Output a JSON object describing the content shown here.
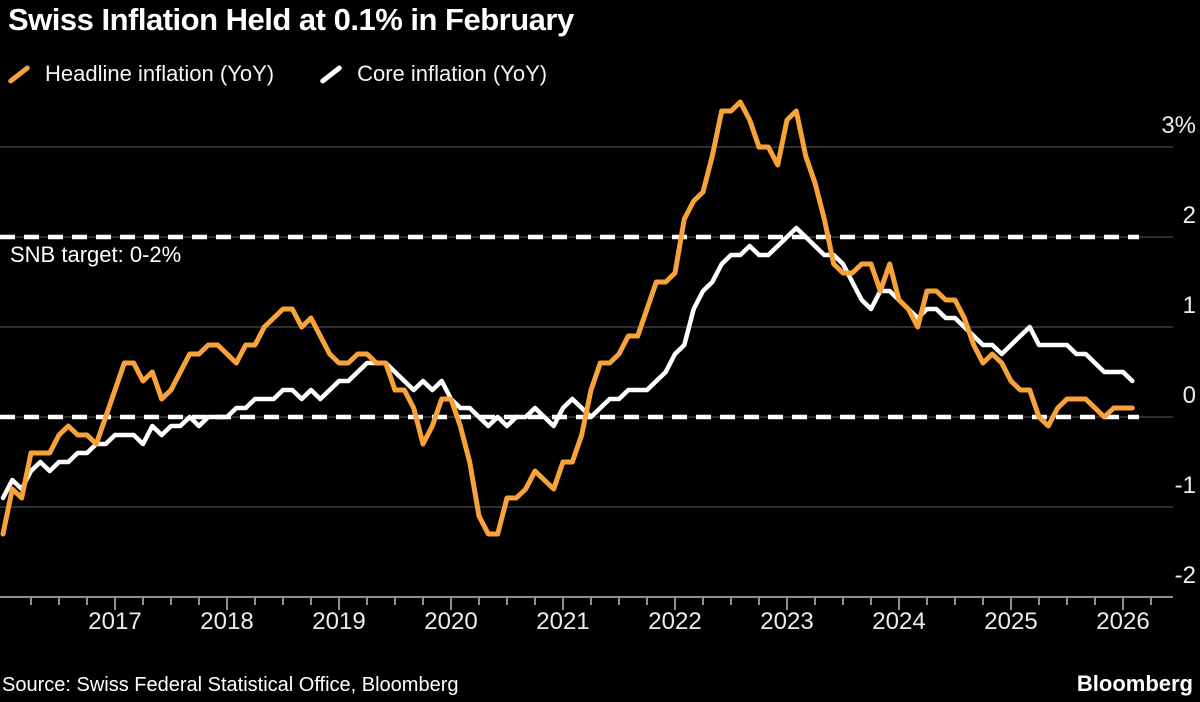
{
  "title": "Swiss Inflation Held at 0.1% in February",
  "annotation": "SNB target: 0-2%",
  "source": "Source: Swiss Federal Statistical Office, Bloomberg",
  "logo": "Bloomberg",
  "colors": {
    "background": "#000000",
    "headline_orange": "#F7A339",
    "core_white": "#FFFFFF",
    "gridline": "#3d3d3d",
    "axis": "#8f8f8f",
    "label_text": "#ececec"
  },
  "legend": [
    {
      "label": "Headline inflation (YoY)",
      "color": "#F7A339"
    },
    {
      "label": "Core inflation (YoY)",
      "color": "#FFFFFF"
    }
  ],
  "chart_data": {
    "type": "line",
    "title": "Swiss Inflation Held at 0.1% in February",
    "xlabel": "",
    "ylabel": "",
    "x_start": "2016-01",
    "x_end": "2026-02",
    "frequency": "monthly",
    "ylim": [
      -2,
      3.6
    ],
    "grid": "horizontal",
    "legend_position": "top-left",
    "target_lines": [
      2,
      0
    ],
    "target_annotation": "SNB target: 0-2%",
    "y_ticks": [
      {
        "value": 3,
        "label": "3%"
      },
      {
        "value": 2,
        "label": "2"
      },
      {
        "value": 1,
        "label": "1"
      },
      {
        "value": 0,
        "label": "0"
      },
      {
        "value": -1,
        "label": "-1"
      },
      {
        "value": -2,
        "label": "-2"
      }
    ],
    "x_ticks_years": [
      "2017",
      "2018",
      "2019",
      "2020",
      "2021",
      "2022",
      "2023",
      "2024",
      "2025",
      "2026"
    ],
    "series": [
      {
        "name": "Core inflation (YoY)",
        "color": "#FFFFFF",
        "width": 4.5,
        "values": [
          -0.9,
          -0.7,
          -0.8,
          -0.6,
          -0.5,
          -0.6,
          -0.5,
          -0.5,
          -0.4,
          -0.4,
          -0.3,
          -0.3,
          -0.2,
          -0.2,
          -0.2,
          -0.3,
          -0.1,
          -0.2,
          -0.1,
          -0.1,
          0.0,
          -0.1,
          0.0,
          0.0,
          0.0,
          0.1,
          0.1,
          0.2,
          0.2,
          0.2,
          0.3,
          0.3,
          0.2,
          0.3,
          0.2,
          0.3,
          0.4,
          0.4,
          0.5,
          0.6,
          0.6,
          0.6,
          0.5,
          0.4,
          0.3,
          0.4,
          0.3,
          0.4,
          0.2,
          0.1,
          0.1,
          0.0,
          -0.1,
          0.0,
          -0.1,
          0.0,
          0.0,
          0.1,
          0.0,
          -0.1,
          0.1,
          0.2,
          0.1,
          0.0,
          0.1,
          0.2,
          0.2,
          0.3,
          0.3,
          0.3,
          0.4,
          0.5,
          0.7,
          0.8,
          1.2,
          1.4,
          1.5,
          1.7,
          1.8,
          1.8,
          1.9,
          1.8,
          1.8,
          1.9,
          2.0,
          2.1,
          2.0,
          1.9,
          1.8,
          1.8,
          1.7,
          1.5,
          1.3,
          1.2,
          1.4,
          1.4,
          1.3,
          1.2,
          1.1,
          1.2,
          1.2,
          1.1,
          1.1,
          1.0,
          0.9,
          0.8,
          0.8,
          0.7,
          0.8,
          0.9,
          1.0,
          0.8,
          0.8,
          0.8,
          0.8,
          0.7,
          0.7,
          0.6,
          0.5,
          0.5,
          0.5,
          0.4
        ]
      },
      {
        "name": "Headline inflation (YoY)",
        "color": "#F7A339",
        "width": 5,
        "values": [
          -1.3,
          -0.8,
          -0.9,
          -0.4,
          -0.4,
          -0.4,
          -0.2,
          -0.1,
          -0.2,
          -0.2,
          -0.3,
          0.0,
          0.3,
          0.6,
          0.6,
          0.4,
          0.5,
          0.2,
          0.3,
          0.5,
          0.7,
          0.7,
          0.8,
          0.8,
          0.7,
          0.6,
          0.8,
          0.8,
          1.0,
          1.1,
          1.2,
          1.2,
          1.0,
          1.1,
          0.9,
          0.7,
          0.6,
          0.6,
          0.7,
          0.7,
          0.6,
          0.6,
          0.3,
          0.3,
          0.1,
          -0.3,
          -0.1,
          0.2,
          0.2,
          -0.1,
          -0.5,
          -1.1,
          -1.3,
          -1.3,
          -0.9,
          -0.9,
          -0.8,
          -0.6,
          -0.7,
          -0.8,
          -0.5,
          -0.5,
          -0.2,
          0.3,
          0.6,
          0.6,
          0.7,
          0.9,
          0.9,
          1.2,
          1.5,
          1.5,
          1.6,
          2.2,
          2.4,
          2.5,
          2.9,
          3.4,
          3.4,
          3.5,
          3.3,
          3.0,
          3.0,
          2.8,
          3.3,
          3.4,
          2.9,
          2.6,
          2.2,
          1.7,
          1.6,
          1.6,
          1.7,
          1.7,
          1.4,
          1.7,
          1.3,
          1.2,
          1.0,
          1.4,
          1.4,
          1.3,
          1.3,
          1.1,
          0.8,
          0.6,
          0.7,
          0.6,
          0.4,
          0.3,
          0.3,
          0.0,
          -0.1,
          0.1,
          0.2,
          0.2,
          0.2,
          0.1,
          0.0,
          0.1,
          0.1,
          0.1
        ]
      }
    ]
  }
}
